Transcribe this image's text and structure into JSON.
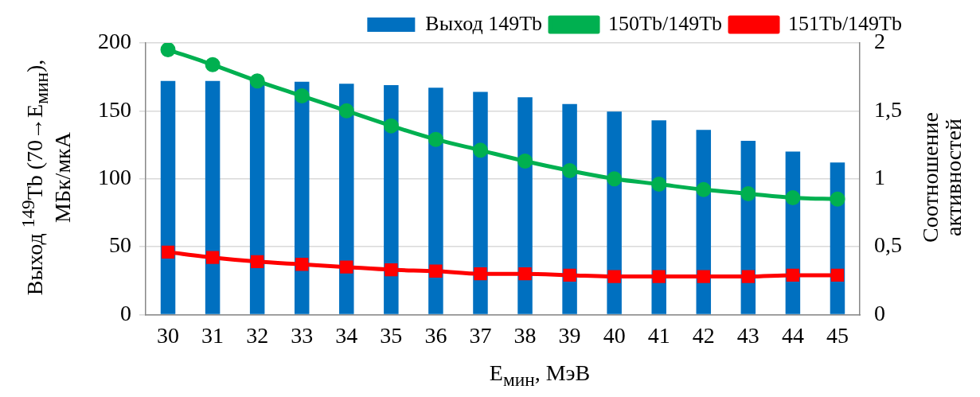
{
  "chart_data": {
    "type": "bar",
    "xlabel": "E$_{мин}$, МэВ",
    "ylabel": "Выход $^{149}$Tb (70→E$_{мин}$), МБк/мкА",
    "y2label": "Соотношение активностей",
    "categories": [
      "30",
      "31",
      "32",
      "33",
      "34",
      "35",
      "36",
      "37",
      "38",
      "39",
      "40",
      "41",
      "42",
      "43",
      "44",
      "45"
    ],
    "series": [
      {
        "name": "Выход 149Tb",
        "color": "#0070c0",
        "values": [
          172,
          172,
          172,
          171.5,
          170,
          169,
          167,
          164,
          160,
          155,
          149.5,
          143,
          136,
          128,
          120,
          112
        ]
      },
      {
        "name": "150Tb/149Tb",
        "type": "line",
        "axis": "y2",
        "marker": "circle",
        "color": "#00b050",
        "values": [
          1.95,
          1.84,
          1.72,
          1.61,
          1.5,
          1.39,
          1.29,
          1.21,
          1.13,
          1.06,
          1.0,
          0.96,
          0.92,
          0.89,
          0.86,
          0.85
        ]
      },
      {
        "name": "151Tb/149Tb",
        "type": "line",
        "axis": "y2",
        "marker": "square",
        "color": "#ff0000",
        "values": [
          0.46,
          0.42,
          0.39,
          0.37,
          0.35,
          0.33,
          0.32,
          0.3,
          0.3,
          0.29,
          0.28,
          0.28,
          0.28,
          0.28,
          0.29,
          0.29
        ]
      }
    ],
    "ylim": [
      0,
      200
    ],
    "yticks": [
      0,
      50,
      100,
      150,
      200
    ],
    "y2lim": [
      0,
      2
    ],
    "y2ticks": [
      0,
      {
        "value": 0.5,
        "label": "0,5"
      },
      1,
      {
        "value": 1.5,
        "label": "1,5"
      },
      2
    ],
    "grid": "y",
    "legend": "top right"
  }
}
